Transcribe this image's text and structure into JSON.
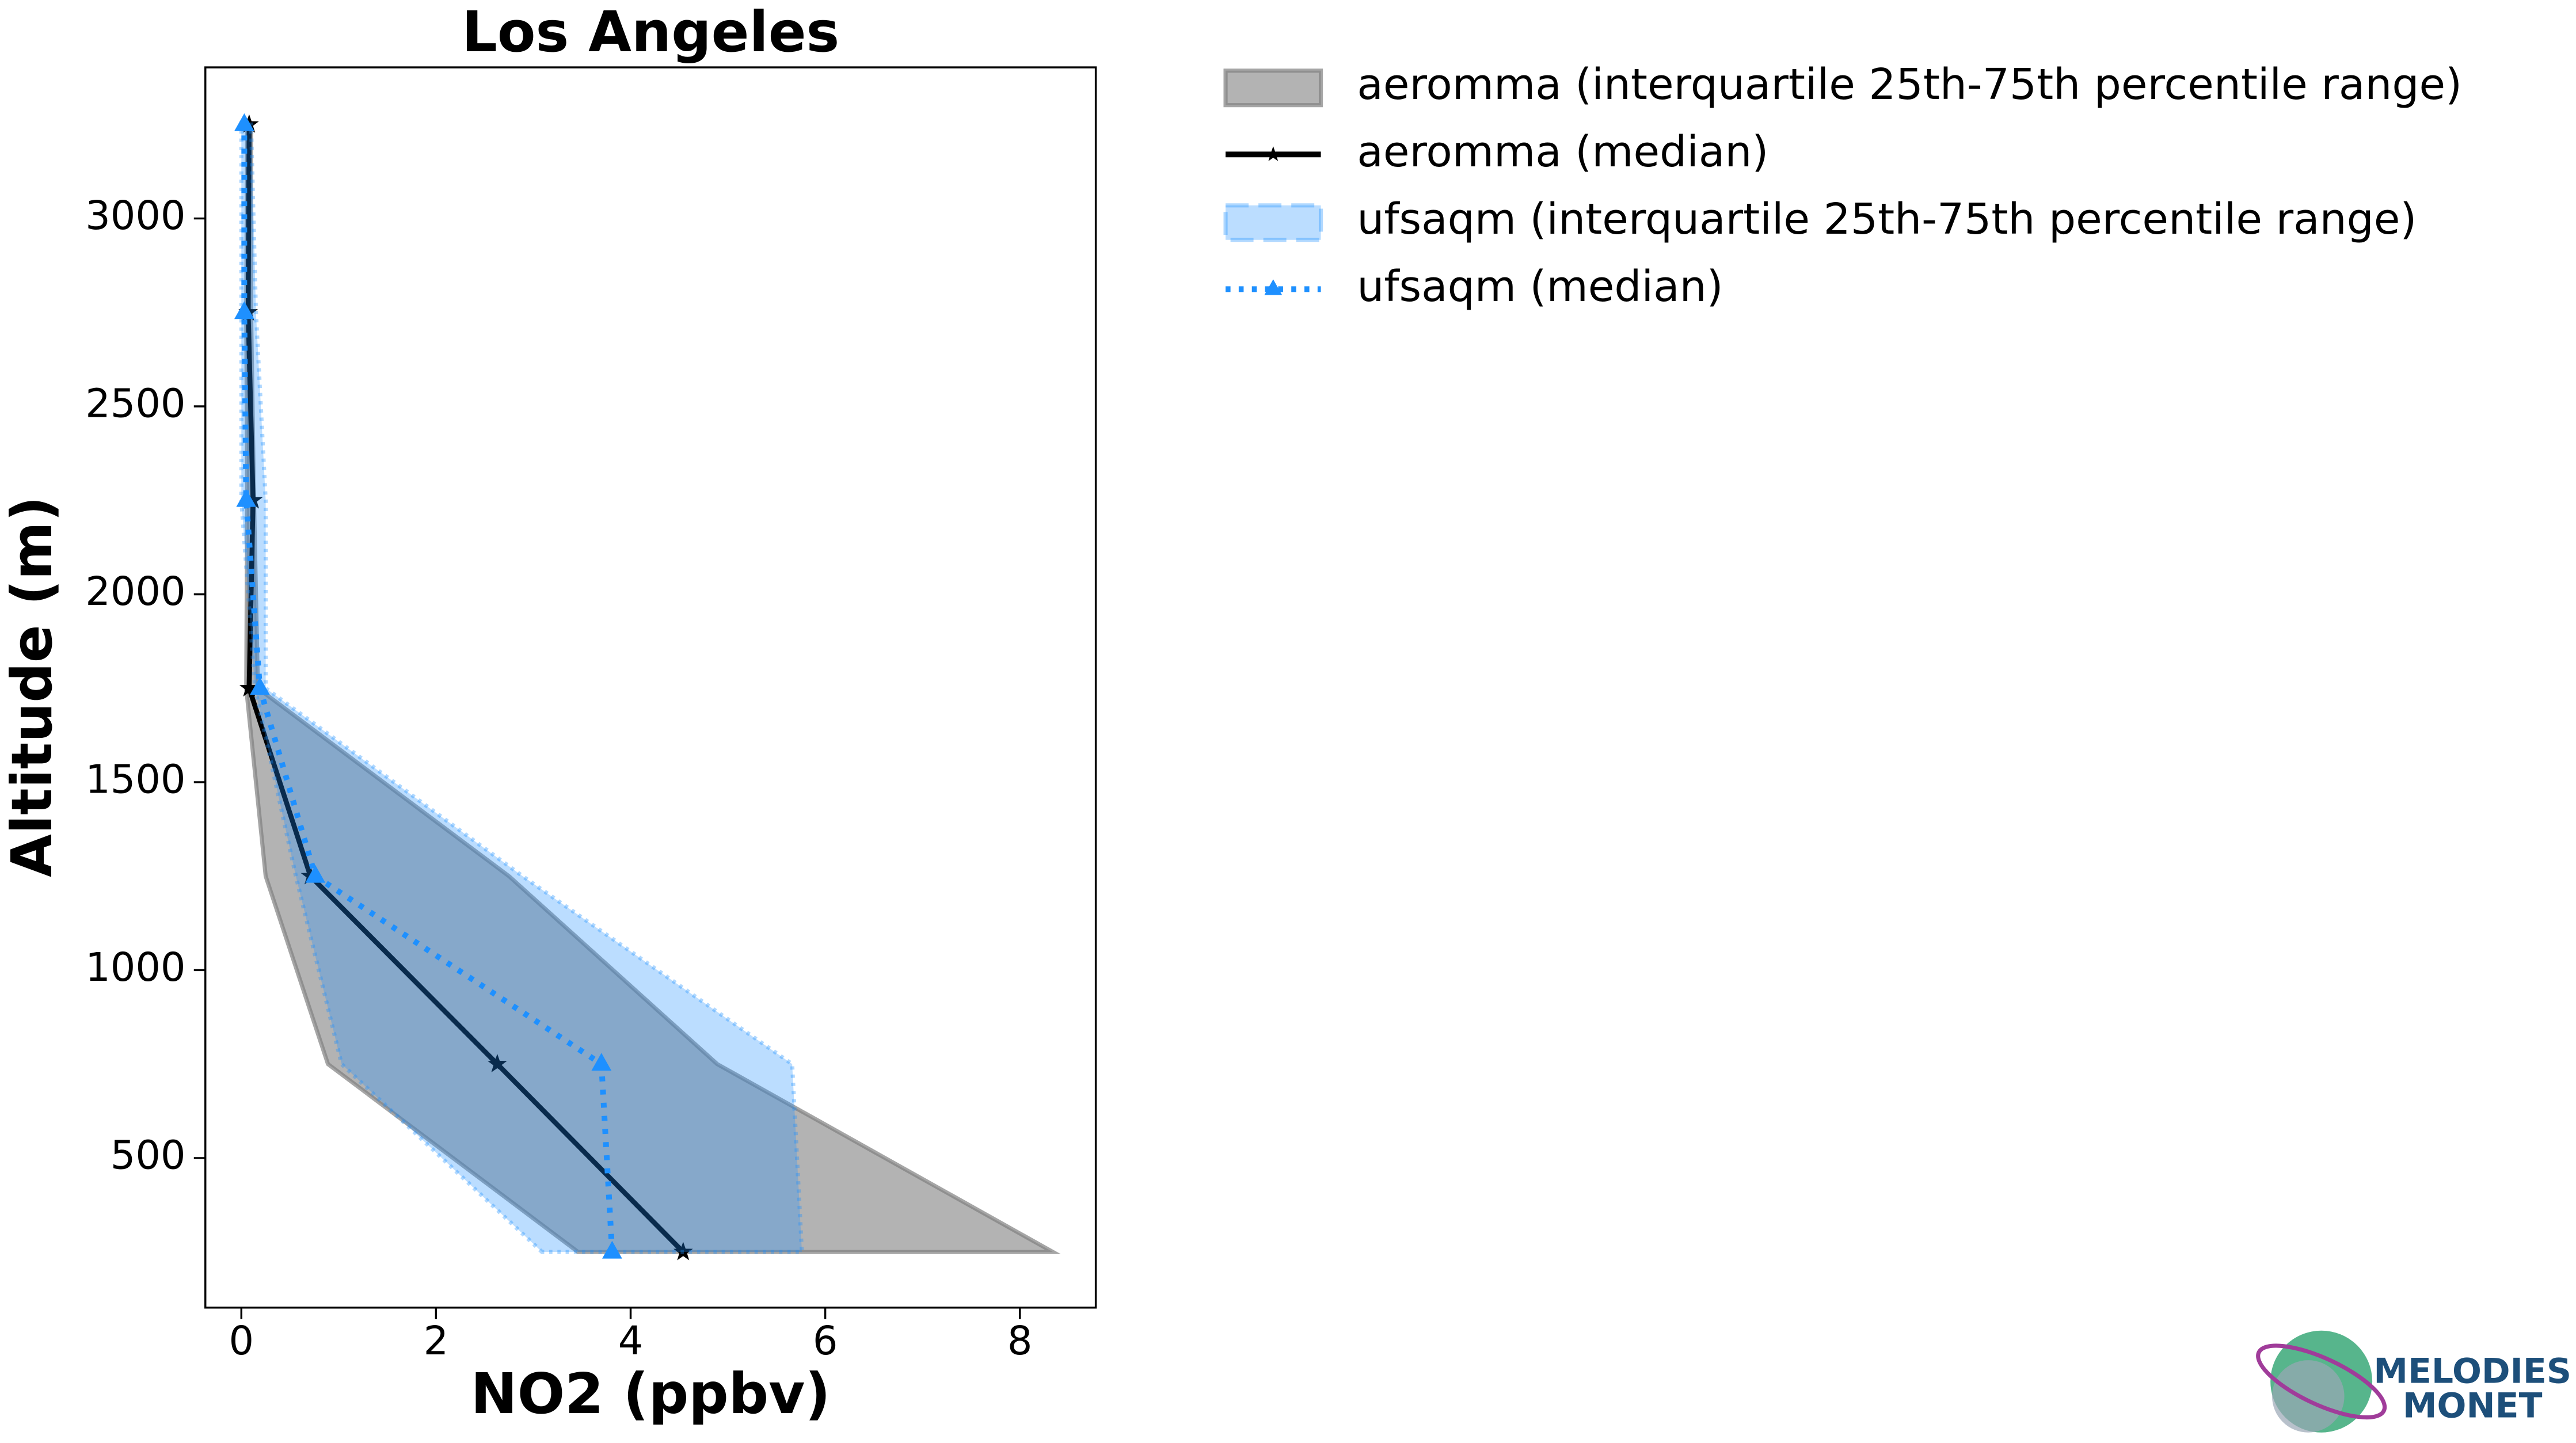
{
  "chart_data": {
    "type": "profile",
    "title": "Los Angeles",
    "x_label": "NO2 (ppbv)",
    "y_label": "Altitude (m)",
    "y": [
      250,
      750,
      1250,
      1750,
      2250,
      2750,
      3250
    ],
    "xlim": [
      -0.37,
      8.78
    ],
    "xticks": [
      0,
      2,
      4,
      6,
      8
    ],
    "ylim": [
      102,
      3402
    ],
    "yticks": [
      500,
      1000,
      1500,
      2000,
      2500,
      3000
    ],
    "series": [
      {
        "name": "aeromma (interquartile 25th-75th percentile range)",
        "kind": "band",
        "color": "#808080",
        "lower": [
          3.46,
          0.89,
          0.25,
          0.05,
          0.06,
          0.05,
          0.06
        ],
        "upper": [
          8.34,
          4.89,
          2.75,
          0.17,
          0.13,
          0.1,
          0.1
        ]
      },
      {
        "name": "aeromma (median)",
        "kind": "line",
        "color": "#000000",
        "marker": "star",
        "values": [
          4.54,
          2.63,
          0.71,
          0.08,
          0.12,
          0.07,
          0.08
        ]
      },
      {
        "name": "ufsaqm (interquartile 25th-75th percentile range)",
        "kind": "band",
        "color": "#1e90ff",
        "lower": [
          3.09,
          1.03,
          0.56,
          0.14,
          0.0,
          0.0,
          0.0
        ],
        "upper": [
          5.76,
          5.66,
          2.89,
          0.25,
          0.25,
          0.15,
          0.1
        ]
      },
      {
        "name": "ufsaqm (median)",
        "kind": "line",
        "color": "#1e90ff",
        "marker": "triangle",
        "dotted": true,
        "values": [
          3.81,
          3.7,
          0.76,
          0.19,
          0.05,
          0.03,
          0.03
        ]
      }
    ],
    "logo": [
      "MELODIES",
      "MONET"
    ]
  }
}
